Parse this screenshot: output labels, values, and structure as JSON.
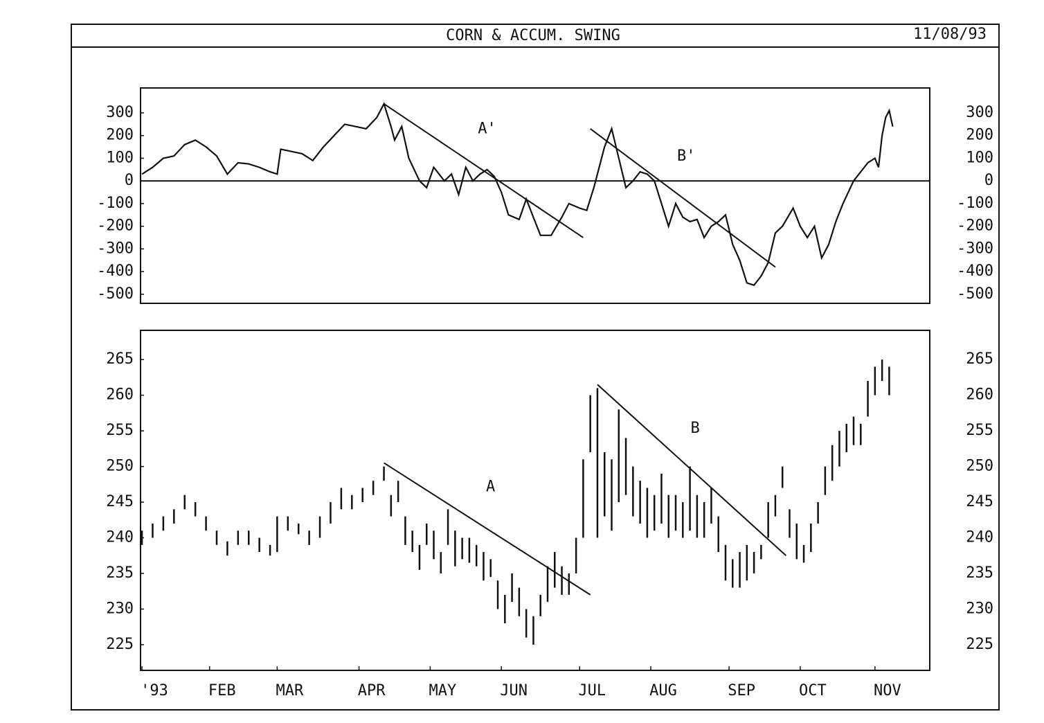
{
  "header": {
    "title": "CORN & ACCUM. SWING",
    "date": "11/08/93"
  },
  "chart_data": [
    {
      "type": "line",
      "x": [
        0,
        3,
        6,
        9,
        12,
        15,
        18,
        21,
        24,
        27,
        30,
        33,
        36,
        38,
        39,
        42,
        45,
        48,
        51,
        54,
        57,
        60,
        63,
        66,
        68,
        70,
        71,
        73,
        75,
        78,
        80,
        82,
        85,
        87,
        89,
        91,
        93,
        95,
        97,
        99,
        101,
        103,
        106,
        108,
        110,
        112,
        115,
        118,
        120,
        123,
        125,
        127,
        130,
        132,
        134,
        136,
        138,
        140,
        142,
        144,
        146,
        148,
        150,
        152,
        154,
        156,
        158,
        160,
        162,
        164,
        166,
        168,
        170,
        172,
        174,
        176,
        178,
        180,
        183,
        185,
        187,
        189,
        191,
        193,
        195,
        197,
        200,
        202,
        204,
        206,
        207,
        208,
        209,
        210,
        211
      ],
      "values": [
        30,
        60,
        100,
        110,
        160,
        180,
        150,
        110,
        30,
        80,
        75,
        60,
        40,
        30,
        140,
        130,
        120,
        90,
        150,
        200,
        250,
        240,
        230,
        280,
        340,
        240,
        180,
        240,
        100,
        0,
        -30,
        60,
        0,
        30,
        -60,
        60,
        0,
        30,
        50,
        20,
        -50,
        -150,
        -170,
        -80,
        -160,
        -240,
        -240,
        -160,
        -100,
        -120,
        -130,
        -30,
        150,
        230,
        100,
        -30,
        0,
        40,
        30,
        0,
        -100,
        -200,
        -100,
        -160,
        -180,
        -170,
        -250,
        -200,
        -180,
        -150,
        -280,
        -350,
        -450,
        -460,
        -420,
        -360,
        -230,
        -200,
        -120,
        -200,
        -250,
        -200,
        -340,
        -280,
        -180,
        -100,
        0,
        40,
        80,
        100,
        60,
        200,
        280,
        310,
        240
      ],
      "xlim": [
        -0.4,
        221.4
      ],
      "ylim": [
        -540,
        410
      ],
      "yticks": [
        300,
        200,
        100,
        0,
        -100,
        -200,
        -300,
        -400,
        -500
      ],
      "hline": 0,
      "lines": [
        {
          "label": "A'",
          "x": [
            68,
            124
          ],
          "y": [
            340,
            -250
          ]
        },
        {
          "label": "B'",
          "x": [
            126,
            178
          ],
          "y": [
            230,
            -380
          ]
        }
      ]
    },
    {
      "type": "range-bars",
      "x": [
        0,
        3,
        6,
        9,
        12,
        15,
        18,
        21,
        24,
        27,
        30,
        33,
        36,
        38,
        41,
        44,
        47,
        50,
        53,
        56,
        59,
        62,
        65,
        68,
        70,
        72,
        74,
        76,
        78,
        80,
        82,
        84,
        86,
        88,
        90,
        92,
        94,
        96,
        98,
        100,
        102,
        104,
        106,
        108,
        110,
        112,
        114,
        116,
        118,
        120,
        122,
        124,
        126,
        128,
        130,
        132,
        134,
        136,
        138,
        140,
        142,
        144,
        146,
        148,
        150,
        152,
        154,
        156,
        158,
        160,
        162,
        164,
        166,
        168,
        170,
        172,
        174,
        176,
        178,
        180,
        182,
        184,
        186,
        188,
        190,
        192,
        194,
        196,
        198,
        200,
        202,
        204,
        206,
        208,
        210
      ],
      "high": [
        241,
        242,
        243,
        244,
        246,
        245,
        243,
        241,
        239.5,
        241,
        241,
        240,
        239,
        243,
        243,
        242,
        241,
        243,
        245,
        247,
        246,
        247,
        248,
        250,
        246,
        248,
        243,
        241,
        239,
        242,
        241,
        238,
        244,
        241,
        240,
        240,
        239,
        238,
        237,
        234,
        232,
        235,
        233,
        230,
        229,
        232,
        236,
        238,
        236,
        235,
        240,
        251,
        260,
        261,
        252,
        251,
        258,
        254,
        250,
        248,
        247,
        246,
        249,
        246,
        246,
        245,
        250,
        246,
        245,
        247,
        243,
        239,
        237,
        238,
        239,
        238,
        239,
        245,
        246,
        250,
        244,
        242,
        239,
        242,
        245,
        250,
        253,
        255,
        256,
        257,
        256,
        262,
        264,
        265,
        264
      ],
      "low": [
        239,
        240,
        241,
        242,
        244,
        243,
        241,
        239,
        237.5,
        239,
        239,
        238,
        237.5,
        238,
        241,
        240.5,
        239,
        240,
        242,
        244,
        244,
        245,
        246,
        248,
        243,
        245,
        239,
        238,
        235.5,
        239,
        237,
        235,
        239,
        236,
        237,
        236.5,
        236,
        234,
        234.5,
        230,
        228,
        231,
        229,
        226,
        225,
        229,
        231,
        233,
        232,
        232,
        235,
        240,
        252,
        240,
        243,
        241,
        245,
        246,
        243,
        242,
        240,
        241,
        242,
        240,
        241,
        240,
        241,
        240,
        240,
        242,
        238,
        234,
        233,
        233,
        234,
        235,
        237,
        240,
        243,
        247,
        240,
        237,
        236.5,
        238,
        242,
        246,
        248,
        250,
        252,
        253,
        253,
        257,
        260,
        262,
        260
      ],
      "xlim": [
        -0.4,
        221.4
      ],
      "ylim": [
        221.4,
        269.1
      ],
      "yticks": [
        265,
        260,
        255,
        250,
        245,
        240,
        235,
        230,
        225
      ],
      "xticks": [
        {
          "value": 0,
          "label": "'93"
        },
        {
          "value": 19,
          "label": "FEB"
        },
        {
          "value": 38,
          "label": "MAR"
        },
        {
          "value": 61,
          "label": "APR"
        },
        {
          "value": 81,
          "label": "MAY"
        },
        {
          "value": 101,
          "label": "JUN"
        },
        {
          "value": 123,
          "label": "JUL"
        },
        {
          "value": 143,
          "label": "AUG"
        },
        {
          "value": 165,
          "label": "SEP"
        },
        {
          "value": 185,
          "label": "OCT"
        },
        {
          "value": 206,
          "label": "NOV"
        }
      ],
      "lines": [
        {
          "label": "A",
          "x": [
            68,
            126
          ],
          "y": [
            250.5,
            232
          ]
        },
        {
          "label": "B",
          "x": [
            128,
            181
          ],
          "y": [
            261.5,
            237.5
          ]
        }
      ]
    }
  ]
}
